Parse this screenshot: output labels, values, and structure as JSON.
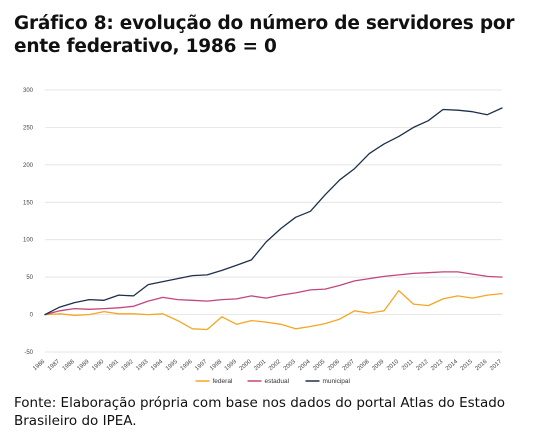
{
  "title": "Gráfico 8: evolução do número de servidores por ente federativo, 1986 = 0",
  "source": "Fonte: Elaboração própria com base nos dados do portal Atlas do Estado Brasileiro do IPEA.",
  "chart_data": {
    "type": "line",
    "x": [
      "1986",
      "1987",
      "1988",
      "1989",
      "1990",
      "1991",
      "1992",
      "1993",
      "1994",
      "1995",
      "1996",
      "1997",
      "1998",
      "1999",
      "2000",
      "2001",
      "2002",
      "2003",
      "2004",
      "2005",
      "2006",
      "2007",
      "2008",
      "2009",
      "2010",
      "2011",
      "2012",
      "2013",
      "2014",
      "2015",
      "2016",
      "2017"
    ],
    "ylim": [
      -50,
      300
    ],
    "yticks": [
      -50,
      0,
      50,
      100,
      150,
      200,
      250,
      300
    ],
    "grid": true,
    "legend_position": "bottom",
    "series": [
      {
        "name": "federal",
        "color": "#f5a623",
        "values": [
          0,
          1,
          -1,
          0,
          4,
          1,
          1,
          0,
          1,
          -8,
          -19,
          -20,
          -3,
          -13,
          -8,
          -10,
          -13,
          -19,
          -16,
          -12,
          -6,
          5,
          2,
          5,
          32,
          14,
          12,
          21,
          25,
          22,
          26,
          28
        ]
      },
      {
        "name": "estadual",
        "color": "#c2457f",
        "values": [
          0,
          5,
          8,
          7,
          8,
          9,
          11,
          18,
          23,
          20,
          19,
          18,
          20,
          21,
          25,
          22,
          26,
          29,
          33,
          34,
          39,
          45,
          48,
          51,
          53,
          55,
          56,
          57,
          57,
          54,
          51,
          50
        ]
      },
      {
        "name": "municipal",
        "color": "#1e2f4a",
        "values": [
          0,
          10,
          16,
          20,
          19,
          26,
          25,
          40,
          44,
          48,
          52,
          53,
          59,
          66,
          73,
          97,
          115,
          130,
          138,
          160,
          180,
          195,
          215,
          228,
          238,
          250,
          259,
          274,
          273,
          271,
          267,
          276
        ]
      }
    ]
  }
}
